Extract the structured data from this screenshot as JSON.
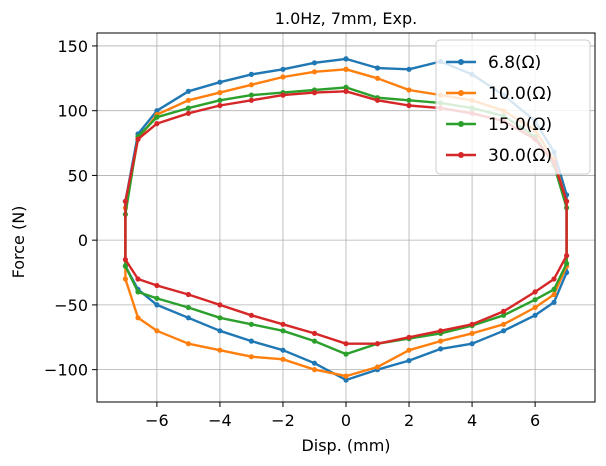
{
  "chart_data": {
    "type": "line",
    "title": "1.0Hz, 7mm, Exp.",
    "xlabel": "Disp. (mm)",
    "ylabel": "Force (N)",
    "xlim": [
      -7.9,
      7.9
    ],
    "ylim": [
      -125,
      160
    ],
    "xticks": [
      -6,
      -4,
      -2,
      0,
      2,
      4,
      6
    ],
    "yticks": [
      -100,
      -50,
      0,
      50,
      100,
      150
    ],
    "xtick_labels": [
      "−6",
      "−4",
      "−2",
      "0",
      "2",
      "4",
      "6"
    ],
    "ytick_labels": [
      "−100",
      "−50",
      "0",
      "50",
      "100",
      "150"
    ],
    "grid": true,
    "legend_position": "top-right",
    "series": [
      {
        "name": "6.8(Ω)",
        "color": "#1f77b4",
        "x": [
          0.0,
          1.0,
          2.0,
          3.0,
          4.0,
          5.0,
          6.0,
          6.6,
          7.0,
          7.0,
          6.6,
          6.0,
          5.0,
          4.0,
          3.0,
          2.0,
          1.0,
          0.0,
          -1.0,
          -2.0,
          -3.0,
          -4.0,
          -5.0,
          -6.0,
          -6.6,
          -7.0,
          -7.0,
          -6.6,
          -6.0,
          -5.0,
          -4.0,
          -3.0,
          -2.0,
          -1.0,
          0.0
        ],
        "y": [
          140,
          133,
          132,
          138,
          128,
          112,
          92,
          68,
          35,
          -25,
          -48,
          -58,
          -70,
          -80,
          -84,
          -93,
          -100,
          -108,
          -95,
          -85,
          -78,
          -70,
          -60,
          -50,
          -38,
          -20,
          30,
          82,
          100,
          115,
          122,
          128,
          132,
          137,
          140
        ]
      },
      {
        "name": "10.0(Ω)",
        "color": "#ff7f0e",
        "x": [
          0.0,
          1.0,
          2.0,
          3.0,
          4.0,
          5.0,
          6.0,
          6.6,
          7.0,
          7.0,
          6.6,
          6.0,
          5.0,
          4.0,
          3.0,
          2.0,
          1.0,
          0.0,
          -1.0,
          -2.0,
          -3.0,
          -4.0,
          -5.0,
          -6.0,
          -6.6,
          -7.0,
          -7.0,
          -6.6,
          -6.0,
          -5.0,
          -4.0,
          -3.0,
          -2.0,
          -1.0,
          0.0
        ],
        "y": [
          132,
          125,
          116,
          112,
          108,
          100,
          85,
          62,
          30,
          -20,
          -42,
          -52,
          -65,
          -72,
          -78,
          -85,
          -98,
          -105,
          -100,
          -92,
          -90,
          -85,
          -80,
          -70,
          -60,
          -30,
          25,
          78,
          97,
          108,
          114,
          120,
          126,
          130,
          132
        ]
      },
      {
        "name": "15.0(Ω)",
        "color": "#2ca02c",
        "x": [
          0.0,
          1.0,
          2.0,
          3.0,
          4.0,
          5.0,
          6.0,
          6.6,
          7.0,
          7.0,
          6.6,
          6.0,
          5.0,
          4.0,
          3.0,
          2.0,
          1.0,
          0.0,
          -1.0,
          -2.0,
          -3.0,
          -4.0,
          -5.0,
          -6.0,
          -6.6,
          -7.0,
          -7.0,
          -6.6,
          -6.0,
          -5.0,
          -4.0,
          -3.0,
          -2.0,
          -1.0,
          0.0
        ],
        "y": [
          118,
          110,
          108,
          106,
          102,
          96,
          80,
          58,
          25,
          -18,
          -38,
          -46,
          -58,
          -66,
          -72,
          -76,
          -80,
          -88,
          -78,
          -70,
          -65,
          -60,
          -52,
          -45,
          -40,
          -20,
          20,
          80,
          95,
          102,
          108,
          112,
          114,
          116,
          118
        ]
      },
      {
        "name": "30.0(Ω)",
        "color": "#d62728",
        "x": [
          0.0,
          1.0,
          2.0,
          3.0,
          4.0,
          5.0,
          6.0,
          6.6,
          7.0,
          7.0,
          6.6,
          6.0,
          5.0,
          4.0,
          3.0,
          2.0,
          1.0,
          0.0,
          -1.0,
          -2.0,
          -3.0,
          -4.0,
          -5.0,
          -6.0,
          -6.6,
          -7.0,
          -7.0,
          -6.6,
          -6.0,
          -5.0,
          -4.0,
          -3.0,
          -2.0,
          -1.0,
          0.0
        ],
        "y": [
          115,
          108,
          104,
          102,
          98,
          92,
          78,
          60,
          30,
          -12,
          -30,
          -40,
          -55,
          -65,
          -70,
          -75,
          -80,
          -80,
          -72,
          -65,
          -58,
          -50,
          -42,
          -35,
          -30,
          -15,
          30,
          78,
          90,
          98,
          104,
          108,
          112,
          114,
          115
        ]
      }
    ]
  }
}
